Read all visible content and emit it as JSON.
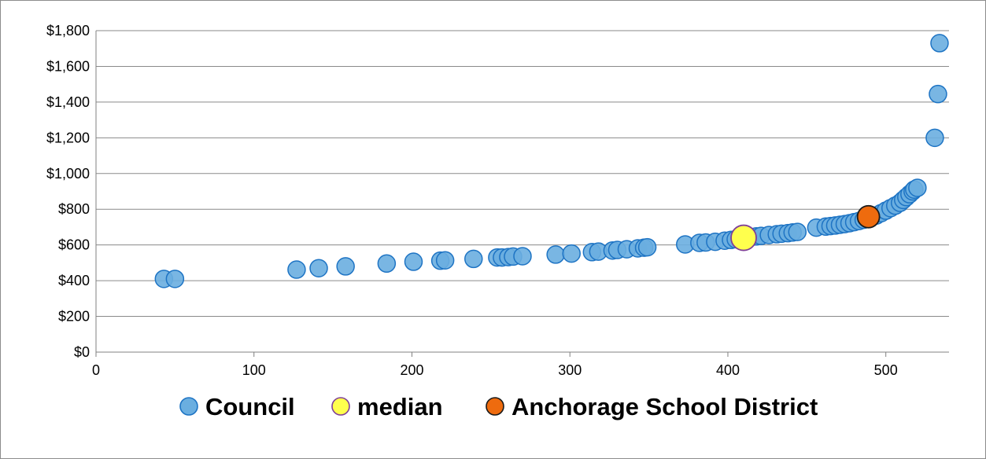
{
  "chart_data": {
    "type": "scatter",
    "title": "",
    "xlabel": "",
    "ylabel": "",
    "xlim": [
      0,
      540
    ],
    "ylim": [
      0,
      1800
    ],
    "x_ticks": [
      0,
      100,
      200,
      300,
      400,
      500
    ],
    "y_ticks": [
      0,
      200,
      400,
      600,
      800,
      1000,
      1200,
      1400,
      1600,
      1800
    ],
    "x_tick_labels": [
      "0",
      "100",
      "200",
      "300",
      "400",
      "500"
    ],
    "y_tick_labels": [
      "$0",
      "$200",
      "$400",
      "$600",
      "$800",
      "$1,000",
      "$1,200",
      "$1,400",
      "$1,600",
      "$1,800"
    ],
    "grid": "horizontal",
    "legend_position": "bottom",
    "series": [
      {
        "name": "Council",
        "fill": "#6aaee0",
        "stroke": "#1e74c4",
        "points": [
          [
            43,
            410
          ],
          [
            50,
            410
          ],
          [
            127,
            462
          ],
          [
            141,
            470
          ],
          [
            158,
            480
          ],
          [
            184,
            496
          ],
          [
            201,
            506
          ],
          [
            218,
            512
          ],
          [
            221,
            514
          ],
          [
            239,
            522
          ],
          [
            254,
            530
          ],
          [
            257,
            530
          ],
          [
            261,
            532
          ],
          [
            264,
            535
          ],
          [
            270,
            537
          ],
          [
            291,
            546
          ],
          [
            301,
            552
          ],
          [
            314,
            560
          ],
          [
            318,
            563
          ],
          [
            327,
            569
          ],
          [
            330,
            572
          ],
          [
            336,
            576
          ],
          [
            343,
            581
          ],
          [
            347,
            585
          ],
          [
            349,
            587
          ],
          [
            373,
            603
          ],
          [
            382,
            612
          ],
          [
            386,
            614
          ],
          [
            392,
            618
          ],
          [
            398,
            624
          ],
          [
            402,
            628
          ],
          [
            405,
            632
          ],
          [
            409,
            636
          ],
          [
            412,
            641
          ],
          [
            415,
            645
          ],
          [
            418,
            648
          ],
          [
            421,
            651
          ],
          [
            426,
            656
          ],
          [
            431,
            660
          ],
          [
            434,
            663
          ],
          [
            438,
            666
          ],
          [
            441,
            670
          ],
          [
            444,
            673
          ],
          [
            456,
            697
          ],
          [
            462,
            703
          ],
          [
            465,
            706
          ],
          [
            468,
            709
          ],
          [
            471,
            713
          ],
          [
            474,
            717
          ],
          [
            477,
            722
          ],
          [
            480,
            728
          ],
          [
            483,
            734
          ],
          [
            486,
            741
          ],
          [
            490,
            752
          ],
          [
            494,
            765
          ],
          [
            497,
            778
          ],
          [
            500,
            792
          ],
          [
            503,
            806
          ],
          [
            506,
            820
          ],
          [
            509,
            836
          ],
          [
            511,
            852
          ],
          [
            513,
            868
          ],
          [
            515,
            884
          ],
          [
            517,
            900
          ],
          [
            518,
            910
          ],
          [
            520,
            920
          ],
          [
            531,
            1200
          ],
          [
            533,
            1445
          ],
          [
            534,
            1730
          ]
        ]
      },
      {
        "name": "median",
        "fill": "#ffff4d",
        "stroke": "#7f3f97",
        "points": [
          [
            410,
            640
          ]
        ]
      },
      {
        "name": "Anchorage School District",
        "fill": "#ee6b0e",
        "stroke": "#1a1a1a",
        "points": [
          [
            489,
            758
          ]
        ]
      }
    ]
  }
}
